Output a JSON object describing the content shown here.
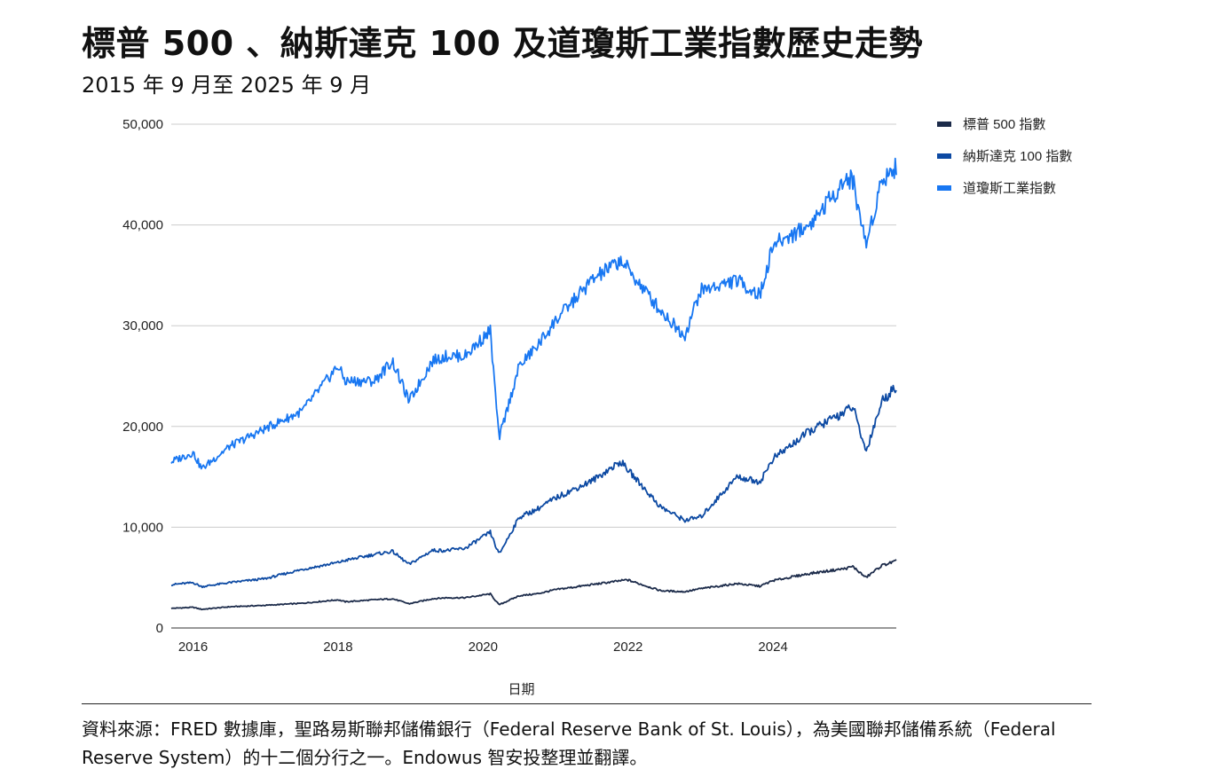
{
  "header": {
    "title": "標普 500 、納斯達克 100 及道瓊斯工業指數歷史走勢",
    "subtitle": "2015 年 9 月至 2025 年 9 月"
  },
  "footer": {
    "source": "資料來源：FRED 數據庫，聖路易斯聯邦儲備銀行（Federal Reserve Bank of St. Louis），為美國聯邦儲備系統（Federal Reserve System）的十二個分行之一。Endowus 智安投整理並翻譯。"
  },
  "chart_data": {
    "type": "line",
    "xlabel": "日期",
    "ylabel": "",
    "xlim": [
      2015.7,
      2025.7
    ],
    "ylim": [
      0,
      50000
    ],
    "x_ticks": [
      2016,
      2018,
      2020,
      2022,
      2024
    ],
    "x_tick_labels": [
      "2016",
      "2018",
      "2020",
      "2022",
      "2024"
    ],
    "y_ticks": [
      0,
      10000,
      20000,
      30000,
      40000,
      50000
    ],
    "y_tick_labels": [
      "0",
      "10,000",
      "20,000",
      "30,000",
      "40,000",
      "50,000"
    ],
    "grid": "horizontal",
    "legend_position": "top-right",
    "series": [
      {
        "name": "標普 500 指數",
        "color": "#1c2b4a",
        "x": [
          2015.7,
          2016.0,
          2016.12,
          2016.5,
          2017.0,
          2017.5,
          2018.0,
          2018.1,
          2018.5,
          2018.75,
          2018.98,
          2019.3,
          2019.5,
          2019.75,
          2020.1,
          2020.22,
          2020.5,
          2020.75,
          2021.0,
          2021.5,
          2021.99,
          2022.45,
          2022.78,
          2023.0,
          2023.5,
          2023.82,
          2024.0,
          2024.5,
          2025.0,
          2025.1,
          2025.28,
          2025.5,
          2025.7
        ],
        "y": [
          1950,
          2050,
          1850,
          2100,
          2250,
          2450,
          2800,
          2600,
          2800,
          2900,
          2400,
          2900,
          3000,
          3000,
          3380,
          2300,
          3200,
          3400,
          3800,
          4300,
          4780,
          3700,
          3600,
          3900,
          4400,
          4150,
          4700,
          5400,
          5900,
          6100,
          5000,
          6200,
          6650
        ]
      },
      {
        "name": "納斯達克 100 指數",
        "color": "#0d4aa3",
        "x": [
          2015.7,
          2016.0,
          2016.12,
          2016.5,
          2017.0,
          2017.5,
          2018.0,
          2018.1,
          2018.5,
          2018.75,
          2018.98,
          2019.3,
          2019.5,
          2019.75,
          2020.1,
          2020.22,
          2020.5,
          2020.75,
          2021.0,
          2021.5,
          2021.9,
          2022.45,
          2022.78,
          2023.0,
          2023.5,
          2023.82,
          2024.0,
          2024.5,
          2025.0,
          2025.1,
          2025.28,
          2025.5,
          2025.7
        ],
        "y": [
          4300,
          4500,
          4100,
          4500,
          4900,
          5800,
          6500,
          6700,
          7300,
          7600,
          6300,
          7700,
          7700,
          7900,
          9500,
          7300,
          11000,
          11800,
          12900,
          14600,
          16500,
          12000,
          10700,
          11000,
          15000,
          14500,
          16800,
          19500,
          21500,
          22000,
          17500,
          22500,
          24000
        ]
      },
      {
        "name": "道瓊斯工業指數",
        "color": "#1877f2",
        "x": [
          2015.7,
          2016.0,
          2016.12,
          2016.5,
          2017.0,
          2017.5,
          2018.0,
          2018.1,
          2018.5,
          2018.75,
          2018.98,
          2019.3,
          2019.5,
          2019.75,
          2020.1,
          2020.22,
          2020.5,
          2020.75,
          2021.0,
          2021.5,
          2021.9,
          2022.45,
          2022.78,
          2023.0,
          2023.5,
          2023.82,
          2024.0,
          2024.5,
          2025.0,
          2025.1,
          2025.28,
          2025.5,
          2025.7
        ],
        "y": [
          16500,
          17400,
          15800,
          18000,
          19800,
          21500,
          26000,
          24500,
          24500,
          26500,
          22500,
          26500,
          27000,
          27000,
          29500,
          18800,
          26000,
          28000,
          30500,
          34500,
          36500,
          31500,
          29000,
          33500,
          34500,
          33000,
          38000,
          40000,
          44500,
          44500,
          38000,
          44500,
          45800
        ]
      }
    ]
  }
}
